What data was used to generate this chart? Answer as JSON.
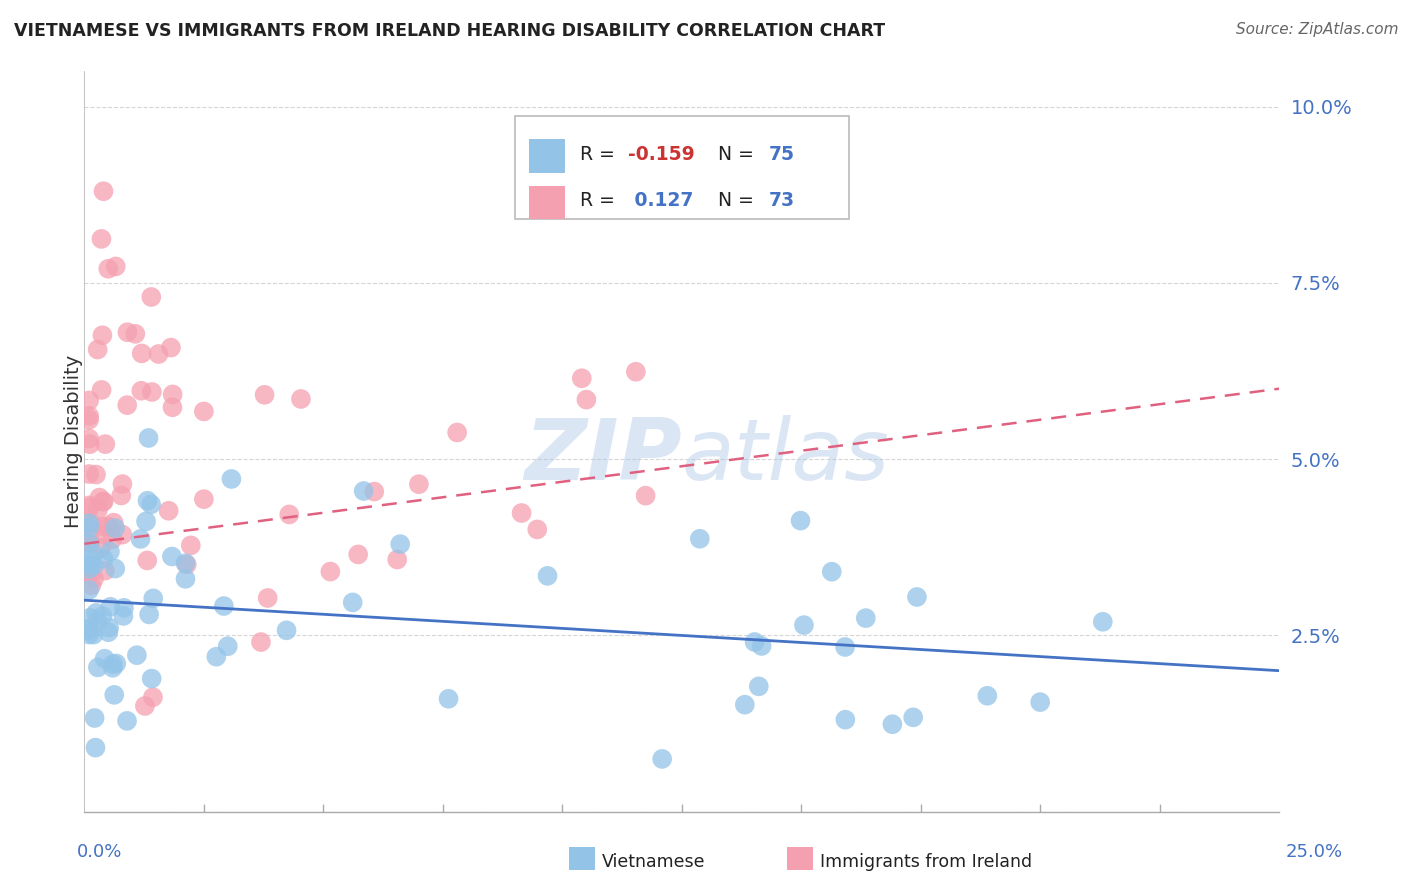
{
  "title": "VIETNAMESE VS IMMIGRANTS FROM IRELAND HEARING DISABILITY CORRELATION CHART",
  "source": "Source: ZipAtlas.com",
  "ylabel": "Hearing Disability",
  "xlim": [
    0.0,
    0.25
  ],
  "ylim": [
    0.0,
    0.105
  ],
  "yticks": [
    0.0,
    0.025,
    0.05,
    0.075,
    0.1
  ],
  "ytick_labels": [
    "",
    "2.5%",
    "5.0%",
    "7.5%",
    "10.0%"
  ],
  "color_blue": "#93C4E8",
  "color_pink": "#F5A0B0",
  "color_blue_dark": "#4472C4",
  "color_pink_dark": "#E06080",
  "color_text_blue": "#4472C4",
  "color_text_red": "#CC3333",
  "color_grid": "#CCCCCC",
  "watermark_color": "#B0C8E8",
  "background_color": "#FFFFFF",
  "legend_r1_label": "R = ",
  "legend_r1_val": "-0.159",
  "legend_n1_label": "N = ",
  "legend_n1_val": "75",
  "legend_r2_label": "R = ",
  "legend_r2_val": " 0.127",
  "legend_n2_label": "N = ",
  "legend_n2_val": "73",
  "bottom_label1": "Vietnamese",
  "bottom_label2": "Immigrants from Ireland",
  "seed": 99
}
